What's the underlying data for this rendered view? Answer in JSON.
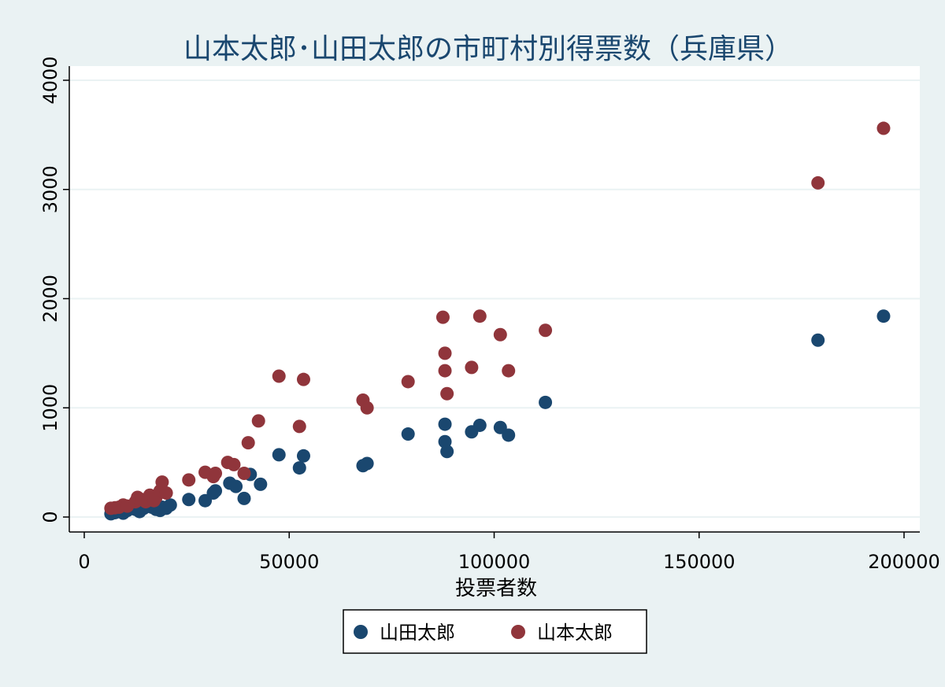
{
  "chart_data": {
    "type": "scatter",
    "title": "山本太郎･山田太郎の市町村別得票数（兵庫県）",
    "xlabel": "投票者数",
    "ylabel": "",
    "xlim": [
      0,
      200000
    ],
    "ylim": [
      0,
      4000
    ],
    "x_ticks": [
      0,
      50000,
      100000,
      150000,
      200000
    ],
    "x_tick_labels": [
      "0",
      "50000",
      "100000",
      "150000",
      "200000"
    ],
    "y_ticks": [
      0,
      1000,
      2000,
      3000,
      4000
    ],
    "y_tick_labels": [
      "0",
      "1000",
      "2000",
      "3000",
      "4000"
    ],
    "grid": true,
    "legend_position": "bottom",
    "series": [
      {
        "name": "山田太郎",
        "color": "#1a476f",
        "points": [
          [
            6500,
            30
          ],
          [
            7500,
            40
          ],
          [
            8500,
            50
          ],
          [
            9500,
            35
          ],
          [
            10500,
            60
          ],
          [
            12500,
            70
          ],
          [
            13500,
            50
          ],
          [
            14500,
            80
          ],
          [
            15500,
            100
          ],
          [
            16500,
            90
          ],
          [
            17500,
            70
          ],
          [
            18500,
            60
          ],
          [
            19000,
            90
          ],
          [
            20000,
            80
          ],
          [
            21000,
            110
          ],
          [
            25500,
            160
          ],
          [
            29500,
            150
          ],
          [
            31500,
            220
          ],
          [
            32000,
            240
          ],
          [
            35500,
            310
          ],
          [
            37000,
            280
          ],
          [
            39000,
            170
          ],
          [
            40500,
            390
          ],
          [
            43000,
            300
          ],
          [
            47500,
            570
          ],
          [
            52500,
            450
          ],
          [
            53500,
            560
          ],
          [
            68000,
            470
          ],
          [
            69000,
            490
          ],
          [
            79000,
            760
          ],
          [
            88000,
            850
          ],
          [
            88000,
            690
          ],
          [
            88500,
            600
          ],
          [
            94500,
            780
          ],
          [
            96500,
            840
          ],
          [
            101500,
            820
          ],
          [
            103500,
            750
          ],
          [
            112500,
            1050
          ],
          [
            179000,
            1620
          ],
          [
            195000,
            1840
          ]
        ]
      },
      {
        "name": "山本太郎",
        "color": "#90353b",
        "points": [
          [
            6500,
            80
          ],
          [
            7500,
            85
          ],
          [
            8500,
            90
          ],
          [
            9500,
            110
          ],
          [
            10500,
            100
          ],
          [
            12500,
            140
          ],
          [
            13000,
            180
          ],
          [
            14000,
            160
          ],
          [
            15000,
            140
          ],
          [
            16000,
            200
          ],
          [
            17000,
            150
          ],
          [
            17500,
            180
          ],
          [
            18500,
            240
          ],
          [
            19000,
            320
          ],
          [
            20000,
            220
          ],
          [
            25500,
            340
          ],
          [
            29500,
            410
          ],
          [
            31500,
            370
          ],
          [
            32000,
            400
          ],
          [
            35000,
            500
          ],
          [
            36500,
            480
          ],
          [
            39000,
            400
          ],
          [
            40000,
            680
          ],
          [
            42500,
            880
          ],
          [
            47500,
            1290
          ],
          [
            52500,
            830
          ],
          [
            53500,
            1260
          ],
          [
            68000,
            1070
          ],
          [
            69000,
            1000
          ],
          [
            79000,
            1240
          ],
          [
            87500,
            1830
          ],
          [
            88000,
            1500
          ],
          [
            88000,
            1340
          ],
          [
            88500,
            1130
          ],
          [
            94500,
            1370
          ],
          [
            96500,
            1840
          ],
          [
            101500,
            1670
          ],
          [
            103500,
            1340
          ],
          [
            112500,
            1710
          ],
          [
            179000,
            3060
          ],
          [
            195000,
            3560
          ]
        ]
      }
    ]
  }
}
